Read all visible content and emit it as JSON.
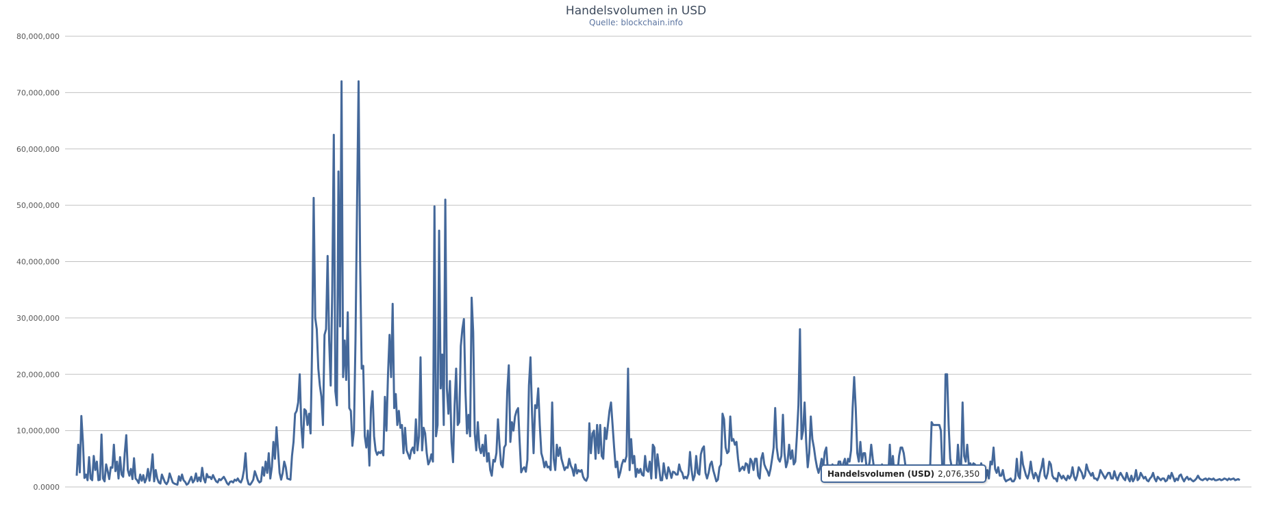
{
  "chart_data": {
    "type": "line",
    "title": "Handelsvolumen in USD",
    "subtitle": "Quelle: blockchain.info",
    "xlabel": "",
    "ylabel": "",
    "ylim": [
      0,
      80000000
    ],
    "y_ticks": [
      "0.0000",
      "10,000,000",
      "20,000,000",
      "30,000,000",
      "40,000,000",
      "50,000,000",
      "60,000,000",
      "70,000,000",
      "80,000,000"
    ],
    "grid": true,
    "color": "#44689a",
    "series": [
      {
        "values": [
          2000000,
          7500000,
          2600000,
          12600000,
          8000000,
          1600000,
          2200000,
          1200000,
          5300000,
          1500000,
          1200000,
          5500000,
          3000000,
          4500000,
          1200000,
          1300000,
          9300000,
          1500000,
          1000000,
          4000000,
          2800000,
          1400000,
          3500000,
          3400000,
          7500000,
          2800000,
          4500000,
          1500000,
          5300000,
          2200000,
          1800000,
          6000000,
          9200000,
          3000000,
          2000000,
          3200000,
          1400000,
          5100000,
          1500000,
          1200000,
          700000,
          2200000,
          1100000,
          2100000,
          800000,
          1500000,
          3200000,
          1100000,
          3000000,
          5800000,
          1000000,
          3000000,
          1500000,
          800000,
          600000,
          2200000,
          1500000,
          800000,
          500000,
          1000000,
          2400000,
          1600000,
          800000,
          600000,
          500000,
          400000,
          1900000,
          1100000,
          2200000,
          1200000,
          900000,
          400000,
          600000,
          1200000,
          1800000,
          800000,
          1200000,
          2400000,
          1000000,
          1700000,
          1000000,
          3400000,
          1500000,
          800000,
          2300000,
          1700000,
          1800000,
          1400000,
          2100000,
          1500000,
          1000000,
          800000,
          1400000,
          1200000,
          1500000,
          1800000,
          1300000,
          700000,
          400000,
          900000,
          1000000,
          800000,
          1300000,
          1100000,
          1500000,
          1000000,
          800000,
          1500000,
          3000000,
          6000000,
          1500000,
          500000,
          400000,
          800000,
          1300000,
          2800000,
          2000000,
          1200000,
          800000,
          1000000,
          3500000,
          2000000,
          4500000,
          2500000,
          6000000,
          1500000,
          3500000,
          8000000,
          5000000,
          10600000,
          6500000,
          2500000,
          1300000,
          2500000,
          4500000,
          3500000,
          1500000,
          1400000,
          1300000,
          5500000,
          8000000,
          13000000,
          13500000,
          15000000,
          20000000,
          11000000,
          7000000,
          13800000,
          13500000,
          11000000,
          13000000,
          9500000,
          25000000,
          51300000,
          30000000,
          28000000,
          21000000,
          18000000,
          16000000,
          11000000,
          27000000,
          28000000,
          41000000,
          26000000,
          18000000,
          35000000,
          62500000,
          17000000,
          14500000,
          56000000,
          28500000,
          72000000,
          19500000,
          26000000,
          19000000,
          31000000,
          14000000,
          13500000,
          7300000,
          10000000,
          26000000,
          50000000,
          72000000,
          40000000,
          21000000,
          21500000,
          9000000,
          7000000,
          10000000,
          3800000,
          14000000,
          17000000,
          9000000,
          6500000,
          5700000,
          6200000,
          6000000,
          6400000,
          5600000,
          16000000,
          10000000,
          20000000,
          27000000,
          19500000,
          32500000,
          14000000,
          16500000,
          11000000,
          13500000,
          10500000,
          11000000,
          6000000,
          10500000,
          6500000,
          5800000,
          5000000,
          6500000,
          7000000,
          6000000,
          12000000,
          6500000,
          9000000,
          23000000,
          6500000,
          10500000,
          9500000,
          6000000,
          4000000,
          4600000,
          5800000,
          4500000,
          49800000,
          9000000,
          11000000,
          45500000,
          17500000,
          23500000,
          11000000,
          51000000,
          17500000,
          13000000,
          18800000,
          8000000,
          4400000,
          14500000,
          21000000,
          11000000,
          11500000,
          25000000,
          28000000,
          29800000,
          17000000,
          9500000,
          12800000,
          9000000,
          33600000,
          27500000,
          9500000,
          6500000,
          11500000,
          7000000,
          6000000,
          7500000,
          5500000,
          9200000,
          4500000,
          6000000,
          3000000,
          2000000,
          4800000,
          4500000,
          6000000,
          12000000,
          7500000,
          4000000,
          3500000,
          7000000,
          7500000,
          17000000,
          21600000,
          8000000,
          11500000,
          10000000,
          12500000,
          13500000,
          14000000,
          8000000,
          2600000,
          3200000,
          3500000,
          2700000,
          4800000,
          18000000,
          23000000,
          13000000,
          6000000,
          14500000,
          14000000,
          17500000,
          11000000,
          6000000,
          5000000,
          3500000,
          4500000,
          3500000,
          3600000,
          3000000,
          15000000,
          5000000,
          3000000,
          7500000,
          5500000,
          7000000,
          5000000,
          4000000,
          3000000,
          3500000,
          3400000,
          5000000,
          3800000,
          3200000,
          2000000,
          4000000,
          2400000,
          3000000,
          2700000,
          3000000,
          1800000,
          1300000,
          1100000,
          1800000,
          11300000,
          6000000,
          9500000,
          10000000,
          5000000,
          11000000,
          6000000,
          11000000,
          5500000,
          5000000,
          10500000,
          8500000,
          11000000,
          13500000,
          15000000,
          11000000,
          7000000,
          3500000,
          4500000,
          1700000,
          2600000,
          4000000,
          4800000,
          4500000,
          5500000,
          21000000,
          3000000,
          8500000,
          4200000,
          5500000,
          1800000,
          3200000,
          2500000,
          3200000,
          2200000,
          2000000,
          5500000,
          3000000,
          2700000,
          4500000,
          1500000,
          7500000,
          7000000,
          1600000,
          5800000,
          3500000,
          1200000,
          1200000,
          4200000,
          2300000,
          1500000,
          3500000,
          2700000,
          1600000,
          2700000,
          2600000,
          2200000,
          2200000,
          4000000,
          2900000,
          2500000,
          1500000,
          1800000,
          1500000,
          2300000,
          6200000,
          3000000,
          1200000,
          2000000,
          5500000,
          2500000,
          2200000,
          5800000,
          6800000,
          7200000,
          2500000,
          1500000,
          2500000,
          4000000,
          4500000,
          3000000,
          2000000,
          1000000,
          1300000,
          3500000,
          4000000,
          13000000,
          12000000,
          7000000,
          6000000,
          6300000,
          12500000,
          8200000,
          8500000,
          7500000,
          8000000,
          5000000,
          2800000,
          3200000,
          3600000,
          3000000,
          4200000,
          4000000,
          2500000,
          5000000,
          4500000,
          3000000,
          5000000,
          5000000,
          2000000,
          1500000,
          5000000,
          6000000,
          4000000,
          3300000,
          2800000,
          2000000,
          3200000,
          5000000,
          7000000,
          14000000,
          7000000,
          5000000,
          4500000,
          5500000,
          12800000,
          6000000,
          3500000,
          4500000,
          7500000,
          5000000,
          6500000,
          4000000,
          4500000,
          9000000,
          14500000,
          28000000,
          8500000,
          10000000,
          15000000,
          8000000,
          3500000,
          6000000,
          12500000,
          8500000,
          7000000,
          5000000,
          3500000,
          2500000,
          3500000,
          5000000,
          3500000,
          6200000,
          7000000,
          3000000,
          1500000,
          2500000,
          4000000,
          3500000,
          3000000,
          3000000,
          4500000,
          4500000,
          3000000,
          4200000,
          5000000,
          3000000,
          5000000,
          4500000,
          6500000,
          14000000,
          19500000,
          14000000,
          6000000,
          4500000,
          8000000,
          4500000,
          6000000,
          6000000,
          3500000,
          3000000,
          4500000,
          7500000,
          5000000,
          3000000,
          2500000,
          2500000,
          3500000,
          2500000,
          4000000,
          2500000,
          3000000,
          2500000,
          2000000,
          7500000,
          2500000,
          5500000,
          2000000,
          2000000,
          2500000,
          5500000,
          7000000,
          7000000,
          6000000,
          4000000,
          2500000,
          3500000,
          2500000,
          2000000,
          2000000,
          1500000,
          2000000,
          2500000,
          2500000,
          1500000,
          2000000,
          2000000,
          1500000,
          1500000,
          2000000,
          3000000,
          11500000,
          11000000,
          11000000,
          11000000,
          11000000,
          11000000,
          10000000,
          2500000,
          3500000,
          20000000,
          20000000,
          11000000,
          5000000,
          3500000,
          3000000,
          3500000,
          2500000,
          7500000,
          4000000,
          3000000,
          15000000,
          5500000,
          4500000,
          7500000,
          4000000,
          4200000,
          3500000,
          4200000,
          4000000,
          3500000,
          2500000,
          2000000,
          4200000,
          3200000,
          2000000,
          1500000,
          3000000,
          1500000,
          4500000,
          4000000,
          7000000,
          3200000,
          2500000,
          3500000,
          2000000,
          2000000,
          3000000,
          1500000,
          1000000,
          1200000,
          1300000,
          1500000,
          1000000,
          1000000,
          1500000,
          5000000,
          2000000,
          1500000,
          6200000,
          4000000,
          3000000,
          2000000,
          1500000,
          2500000,
          4500000,
          2500000,
          1500000,
          2500000,
          2000000,
          1000000,
          2500000,
          3500000,
          5000000,
          2000000,
          1500000,
          2500000,
          4500000,
          4000000,
          2000000,
          1500000,
          1500000,
          1000000,
          2500000,
          2000000,
          1500000,
          2000000,
          1500000,
          1200000,
          2000000,
          1500000,
          2000000,
          3500000,
          1800000,
          1200000,
          2000000,
          3500000,
          3000000,
          2500000,
          1500000,
          2000000,
          4000000,
          3000000,
          2500000,
          2000000,
          2500000,
          1500000,
          1500000,
          1200000,
          1800000,
          3000000,
          2500000,
          2000000,
          1500000,
          2000000,
          2500000,
          2500000,
          1500000,
          1500000,
          2800000,
          1800000,
          1200000,
          2000000,
          2500000,
          2000000,
          1500000,
          1200000,
          2500000,
          1500000,
          1000000,
          2000000,
          1000000,
          1500000,
          3000000,
          1200000,
          1500000,
          2500000,
          2000000,
          1500000,
          1800000,
          1200000,
          1000000,
          1500000,
          1800000,
          2500000,
          1500000,
          1000000,
          1800000,
          1500000,
          1200000,
          1500000,
          1500000,
          1000000,
          1200000,
          2000000,
          1500000,
          2500000,
          1800000,
          1000000,
          1500000,
          1200000,
          2000000,
          2200000,
          1500000,
          1000000,
          1500000,
          1800000,
          1300000,
          1500000,
          1200000,
          1000000,
          1200000,
          1500000,
          2000000,
          1500000,
          1300000,
          1200000,
          1400000,
          1500000,
          1200000,
          1500000,
          1400000,
          1300000,
          1500000,
          1200000,
          1200000,
          1300000,
          1400000,
          1200000,
          1300000,
          1500000,
          1400000,
          1200000,
          1500000,
          1300000,
          1400000,
          1500000,
          1200000,
          1300000,
          1400000,
          1200000
        ]
      }
    ],
    "tooltip": {
      "series_name": "Handelsvolumen (USD)",
      "value": "2,076,350"
    }
  }
}
